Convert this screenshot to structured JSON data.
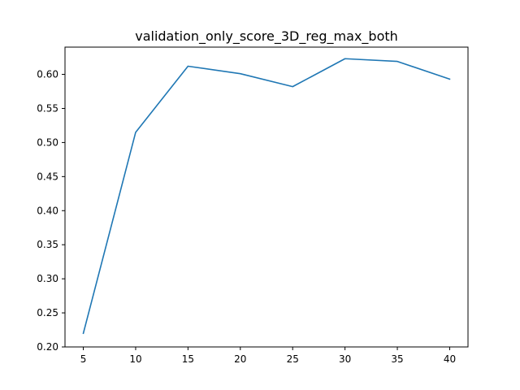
{
  "chart_data": {
    "type": "line",
    "title": "validation_only_score_3D_reg_max_both",
    "xlabel": "",
    "ylabel": "",
    "x": [
      5,
      10,
      15,
      20,
      25,
      30,
      35,
      40
    ],
    "series": [
      {
        "values": [
          0.22,
          0.515,
          0.612,
          0.601,
          0.582,
          0.623,
          0.619,
          0.593
        ],
        "color": "#1f77b4"
      }
    ],
    "x_ticks": [
      5,
      10,
      15,
      20,
      25,
      30,
      35,
      40
    ],
    "x_tick_labels": [
      "5",
      "10",
      "15",
      "20",
      "25",
      "30",
      "35",
      "40"
    ],
    "y_ticks": [
      0.2,
      0.25,
      0.3,
      0.35,
      0.4,
      0.45,
      0.5,
      0.55,
      0.6
    ],
    "y_tick_labels": [
      "0.20",
      "0.25",
      "0.30",
      "0.35",
      "0.40",
      "0.45",
      "0.50",
      "0.55",
      "0.60"
    ],
    "xlim": [
      3.25,
      41.75
    ],
    "ylim": [
      0.2,
      0.64
    ],
    "grid": false,
    "legend": "none"
  }
}
